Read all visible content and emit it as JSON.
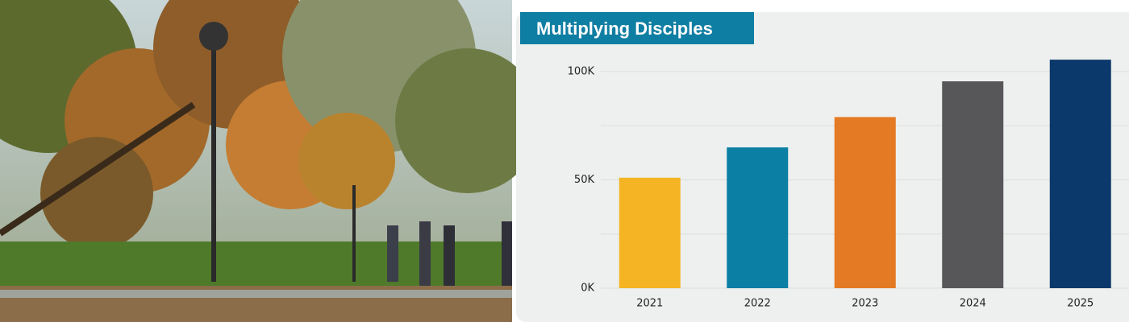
{
  "chart_data": {
    "type": "bar",
    "title": "Multiplying Disciples",
    "categories": [
      "2021",
      "2022",
      "2023",
      "2024",
      "2025"
    ],
    "values": [
      51000,
      65000,
      79000,
      95500,
      105500
    ],
    "colors": [
      "#f4b423",
      "#0c7fa5",
      "#e47a24",
      "#575659",
      "#0c396b"
    ],
    "ylim": [
      0,
      110000
    ],
    "yticks": [
      {
        "value": 0,
        "label": "0K"
      },
      {
        "value": 50000,
        "label": "50K"
      },
      {
        "value": 100000,
        "label": "100K"
      }
    ],
    "minor_yticks": [
      25000,
      75000
    ],
    "grid": true
  }
}
